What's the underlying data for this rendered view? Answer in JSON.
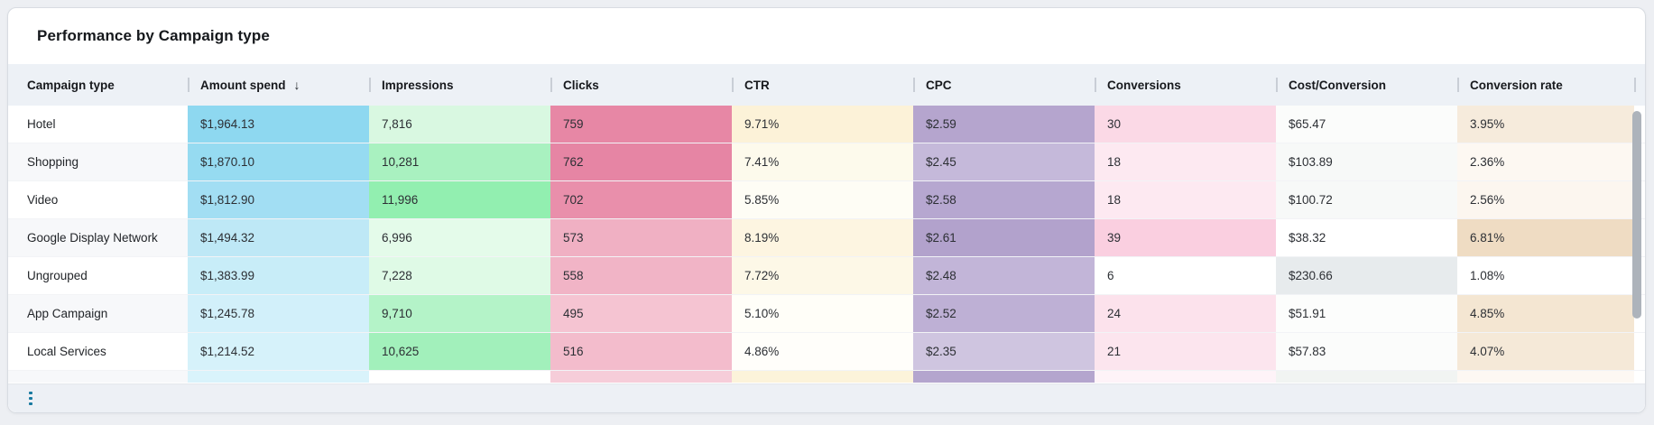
{
  "card": {
    "title": "Performance by Campaign type"
  },
  "icons": {
    "sort_descending": "↓"
  },
  "table": {
    "columns": [
      {
        "key": "campaign_type",
        "label": "Campaign type",
        "sorted": false
      },
      {
        "key": "amount_spend",
        "label": "Amount spend",
        "sorted": true,
        "sort_direction": "descending"
      },
      {
        "key": "impressions",
        "label": "Impressions",
        "sorted": false
      },
      {
        "key": "clicks",
        "label": "Clicks",
        "sorted": false
      },
      {
        "key": "ctr",
        "label": "CTR",
        "sorted": false
      },
      {
        "key": "cpc",
        "label": "CPC",
        "sorted": false
      },
      {
        "key": "conversions",
        "label": "Conversions",
        "sorted": false
      },
      {
        "key": "cost_per_conversion",
        "label": "Cost/Conversion",
        "sorted": false
      },
      {
        "key": "conversion_rate",
        "label": "Conversion rate",
        "sorted": false
      }
    ],
    "rows": [
      {
        "partial": false,
        "cells": [
          {
            "text": "Hotel",
            "bg": "#ffffff"
          },
          {
            "text": "$1,964.13",
            "bg": "#8ed8f0"
          },
          {
            "text": "7,816",
            "bg": "#d9f8e1"
          },
          {
            "text": "759",
            "bg": "#e787a5"
          },
          {
            "text": "9.71%",
            "bg": "#fcf2d8"
          },
          {
            "text": "$2.59",
            "bg": "#b5a5ce"
          },
          {
            "text": "30",
            "bg": "#fbd9e6"
          },
          {
            "text": "$65.47",
            "bg": "#fbfcfb"
          },
          {
            "text": "3.95%",
            "bg": "#f6ebdc"
          }
        ]
      },
      {
        "partial": false,
        "cells": [
          {
            "text": "Shopping",
            "bg": "#f7f8fa"
          },
          {
            "text": "$1,870.10",
            "bg": "#96dbf1"
          },
          {
            "text": "10,281",
            "bg": "#a9f1c0"
          },
          {
            "text": "762",
            "bg": "#e685a4"
          },
          {
            "text": "7.41%",
            "bg": "#fdfaec"
          },
          {
            "text": "$2.45",
            "bg": "#c5b9da"
          },
          {
            "text": "18",
            "bg": "#fde9f1"
          },
          {
            "text": "$103.89",
            "bg": "#f7f9f8"
          },
          {
            "text": "2.36%",
            "bg": "#fdf8f2"
          }
        ]
      },
      {
        "partial": false,
        "cells": [
          {
            "text": "Video",
            "bg": "#ffffff"
          },
          {
            "text": "$1,812.90",
            "bg": "#a2def3"
          },
          {
            "text": "11,996",
            "bg": "#92efb0"
          },
          {
            "text": "702",
            "bg": "#e98fab"
          },
          {
            "text": "5.85%",
            "bg": "#fefdf5"
          },
          {
            "text": "$2.58",
            "bg": "#b6a7d0"
          },
          {
            "text": "18",
            "bg": "#fde9f1"
          },
          {
            "text": "$100.72",
            "bg": "#f7f9f8"
          },
          {
            "text": "2.56%",
            "bg": "#fcf6ef"
          }
        ]
      },
      {
        "partial": false,
        "cells": [
          {
            "text": "Google Display Network",
            "bg": "#f7f8fa"
          },
          {
            "text": "$1,494.32",
            "bg": "#bee8f6"
          },
          {
            "text": "6,996",
            "bg": "#e4fbea"
          },
          {
            "text": "573",
            "bg": "#f0b0c3"
          },
          {
            "text": "8.19%",
            "bg": "#fdf5e1"
          },
          {
            "text": "$2.61",
            "bg": "#b2a2cc"
          },
          {
            "text": "39",
            "bg": "#facfe0"
          },
          {
            "text": "$38.32",
            "bg": "#ffffff"
          },
          {
            "text": "6.81%",
            "bg": "#efdcc3"
          }
        ]
      },
      {
        "partial": false,
        "cells": [
          {
            "text": "Ungrouped",
            "bg": "#ffffff"
          },
          {
            "text": "$1,383.99",
            "bg": "#c8edf8"
          },
          {
            "text": "7,228",
            "bg": "#dffae6"
          },
          {
            "text": "558",
            "bg": "#f1b4c6"
          },
          {
            "text": "7.72%",
            "bg": "#fdf8e7"
          },
          {
            "text": "$2.48",
            "bg": "#c2b5d8"
          },
          {
            "text": "6",
            "bg": "#ffffff"
          },
          {
            "text": "$230.66",
            "bg": "#e7ebed"
          },
          {
            "text": "1.08%",
            "bg": "#ffffff"
          }
        ]
      },
      {
        "partial": false,
        "cells": [
          {
            "text": "App Campaign",
            "bg": "#f7f8fa"
          },
          {
            "text": "$1,245.78",
            "bg": "#d2f0fa"
          },
          {
            "text": "9,710",
            "bg": "#b4f3c8"
          },
          {
            "text": "495",
            "bg": "#f5c4d2"
          },
          {
            "text": "5.10%",
            "bg": "#fffef8"
          },
          {
            "text": "$2.52",
            "bg": "#beb0d5"
          },
          {
            "text": "24",
            "bg": "#fce2ec"
          },
          {
            "text": "$51.91",
            "bg": "#fcfdfc"
          },
          {
            "text": "4.85%",
            "bg": "#f4e6d2"
          }
        ]
      },
      {
        "partial": false,
        "cells": [
          {
            "text": "Local Services",
            "bg": "#ffffff"
          },
          {
            "text": "$1,214.52",
            "bg": "#d6f2fa"
          },
          {
            "text": "10,625",
            "bg": "#a2f0bb"
          },
          {
            "text": "516",
            "bg": "#f3bccc"
          },
          {
            "text": "4.86%",
            "bg": "#fffefa"
          },
          {
            "text": "$2.35",
            "bg": "#cfc5e0"
          },
          {
            "text": "21",
            "bg": "#fce5ee"
          },
          {
            "text": "$57.83",
            "bg": "#fbfcfb"
          },
          {
            "text": "4.07%",
            "bg": "#f5e9d8"
          }
        ]
      },
      {
        "partial": true,
        "cells": [
          {
            "text": "",
            "bg": "#f7f8fa"
          },
          {
            "text": "",
            "bg": "#d9f3fb"
          },
          {
            "text": "",
            "bg": "#ffffff"
          },
          {
            "text": "",
            "bg": "#f6cdd9"
          },
          {
            "text": "",
            "bg": "#fcf3da"
          },
          {
            "text": "",
            "bg": "#b4a5ce"
          },
          {
            "text": "",
            "bg": "#fef3f8"
          },
          {
            "text": "",
            "bg": "#f1f4f2"
          },
          {
            "text": "",
            "bg": "#fdf8f3"
          }
        ]
      }
    ]
  },
  "colors": {
    "page_background": "#edeff3",
    "card_background": "#ffffff",
    "header_background": "#edf1f6",
    "footer_background": "#edf0f5",
    "scrollbar_thumb": "#adb3bb",
    "ellipsis_icon": "#1879a0"
  }
}
